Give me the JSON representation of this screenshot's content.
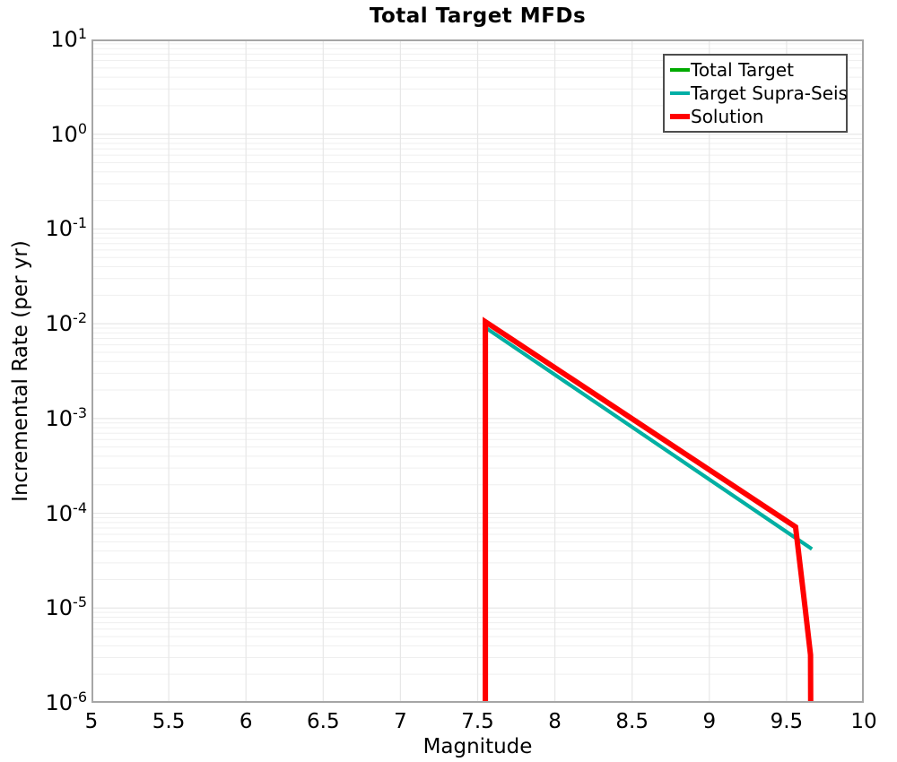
{
  "title": "Total Target MFDs",
  "axes": {
    "x": {
      "label": "Magnitude",
      "min": 5,
      "max": 10,
      "ticks": [
        "5",
        "5.5",
        "6",
        "6.5",
        "7",
        "7.5",
        "8",
        "8.5",
        "9",
        "9.5",
        "10"
      ],
      "tick_values": [
        5,
        5.5,
        6,
        6.5,
        7,
        7.5,
        8,
        8.5,
        9,
        9.5,
        10
      ]
    },
    "y": {
      "label": "Incremental Rate (per yr)",
      "scale": "log",
      "min": 1e-06,
      "max": 10,
      "tick_exponents": [
        1,
        0,
        -1,
        -2,
        -3,
        -4,
        -5,
        -6
      ]
    }
  },
  "legend": {
    "position": "upper-right",
    "items": [
      {
        "label": "Total Target",
        "color": "#00aa00",
        "swatch_height": 4
      },
      {
        "label": "Target Supra-Seis",
        "color": "#00afa6",
        "swatch_height": 4
      },
      {
        "label": "Solution",
        "color": "#ff0000",
        "swatch_height": 6
      }
    ]
  },
  "colors": {
    "background": "#ffffff",
    "plot_frame": "#a6a6a6",
    "legend_border": "#4d4d4d",
    "grid_minor": "#efefef",
    "grid_major": "#e7e7e7",
    "text": "#000000"
  },
  "chart_data": {
    "type": "line",
    "title": "Total Target MFDs",
    "xlabel": "Magnitude",
    "ylabel": "Incremental Rate (per yr)",
    "xlim": [
      5,
      10
    ],
    "ylim": [
      1e-06,
      10
    ],
    "yscale": "log",
    "x_ticks": [
      5,
      5.5,
      6,
      6.5,
      7,
      7.5,
      8,
      8.5,
      9,
      9.5,
      10
    ],
    "y_ticks": [
      1e-06,
      1e-05,
      0.0001,
      0.001,
      0.01,
      0.1,
      1,
      10
    ],
    "grid": true,
    "legend_position": "upper right",
    "series": [
      {
        "name": "Total Target",
        "color": "#00aa00",
        "line_width": 4,
        "points": [
          [
            7.555,
            0.009
          ],
          [
            9.664,
            4.2e-05
          ]
        ]
      },
      {
        "name": "Target Supra-Seis",
        "color": "#00afa6",
        "line_width": 4,
        "points": [
          [
            7.555,
            0.009
          ],
          [
            9.664,
            4.2e-05
          ]
        ]
      },
      {
        "name": "Solution",
        "color": "#ff0000",
        "line_width": 6,
        "points": [
          [
            7.55,
            1e-07
          ],
          [
            7.55,
            0.0105
          ],
          [
            9.558,
            7.2e-05
          ],
          [
            9.62,
            1e-05
          ],
          [
            9.655,
            3.2e-06
          ],
          [
            9.658,
            1e-07
          ]
        ]
      }
    ]
  }
}
